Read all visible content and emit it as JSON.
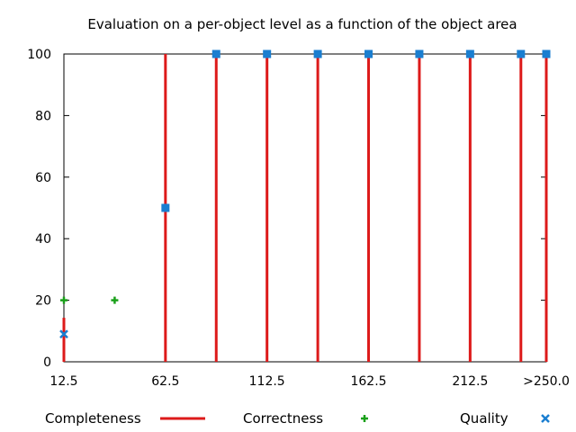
{
  "chart_data": {
    "type": "bar",
    "title": "Evaluation on a per-object level as a function of the object area",
    "xlabel": "",
    "ylabel": "",
    "xlim": [
      12.5,
      250
    ],
    "ylim": [
      0,
      100
    ],
    "x_ticks": [
      {
        "value": 12.5,
        "label": "12.5"
      },
      {
        "value": 62.5,
        "label": "62.5"
      },
      {
        "value": 112.5,
        "label": "112.5"
      },
      {
        "value": 162.5,
        "label": "162.5"
      },
      {
        "value": 212.5,
        "label": "212.5"
      },
      {
        "value": 250,
        "label": ">250.0"
      }
    ],
    "y_ticks": [
      0,
      20,
      40,
      60,
      80,
      100
    ],
    "grid": false,
    "legend_position": "bottom",
    "series": [
      {
        "name": "Completeness",
        "style": "impulses",
        "color": "#dd1a1a",
        "x": [
          12.5,
          62.5,
          87.5,
          112.5,
          137.5,
          162.5,
          187.5,
          212.5,
          237.5,
          250
        ],
        "values": [
          14.3,
          100,
          100,
          100,
          100,
          100,
          100,
          100,
          100,
          100
        ]
      },
      {
        "name": "Correctness",
        "style": "plus",
        "color": "#1aa01a",
        "x": [
          12.5,
          37.5
        ],
        "values": [
          20,
          20
        ]
      },
      {
        "name": "Quality",
        "style": "points",
        "color": "#1a7ed0",
        "x": [
          12.5,
          62.5,
          87.5,
          112.5,
          137.5,
          162.5,
          187.5,
          212.5,
          237.5,
          250
        ],
        "values": [
          9,
          50,
          100,
          100,
          100,
          100,
          100,
          100,
          100,
          100
        ]
      }
    ]
  }
}
